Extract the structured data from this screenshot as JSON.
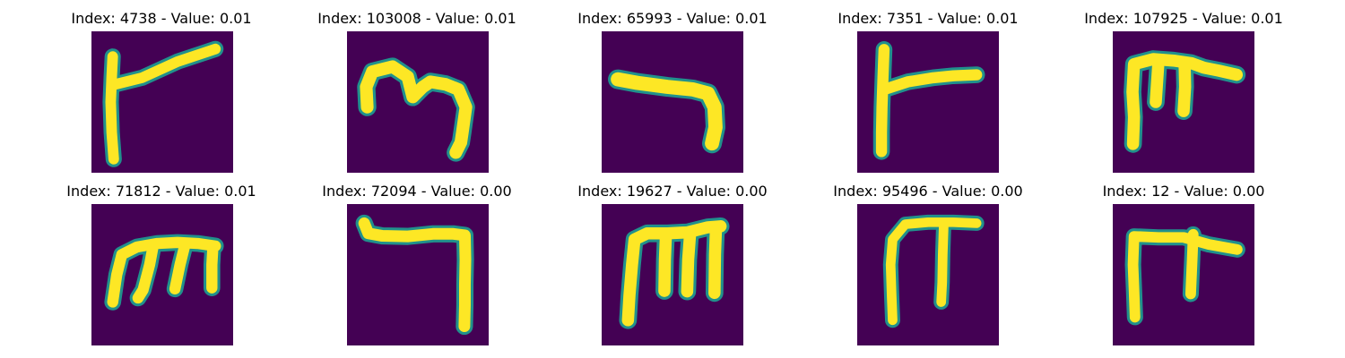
{
  "figure": {
    "colormap": "viridis",
    "background_color": "#440154",
    "foreground_color": "#fde725",
    "edge_color": "#21918c",
    "panels": [
      {
        "title": "Index: 4738 - Value: 0.01",
        "glyph": "stroke-4738"
      },
      {
        "title": "Index: 103008 - Value: 0.01",
        "glyph": "stroke-103008"
      },
      {
        "title": "Index: 65993 - Value: 0.01",
        "glyph": "stroke-65993"
      },
      {
        "title": "Index: 7351 - Value: 0.01",
        "glyph": "stroke-7351"
      },
      {
        "title": "Index: 107925 - Value: 0.01",
        "glyph": "stroke-107925"
      },
      {
        "title": "Index: 71812 - Value: 0.01",
        "glyph": "stroke-71812"
      },
      {
        "title": "Index: 72094 - Value: 0.00",
        "glyph": "stroke-72094"
      },
      {
        "title": "Index: 19627 - Value: 0.00",
        "glyph": "stroke-19627"
      },
      {
        "title": "Index: 95496 - Value: 0.00",
        "glyph": "stroke-95496"
      },
      {
        "title": "Index: 12 - Value: 0.00",
        "glyph": "stroke-12"
      }
    ]
  }
}
